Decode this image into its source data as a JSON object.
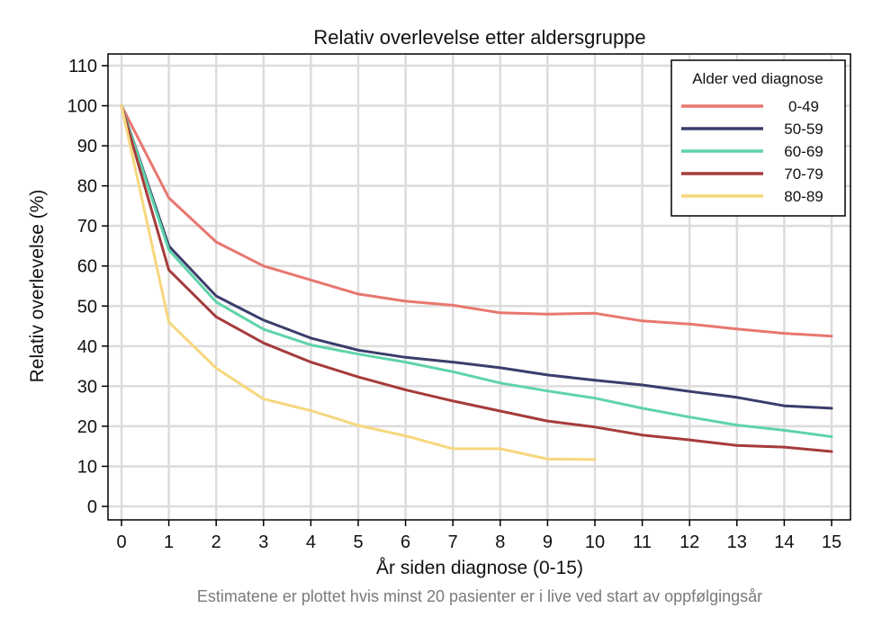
{
  "chart_data": {
    "type": "line",
    "title": "Relativ overlevelse etter aldersgruppe",
    "xlabel": "År siden diagnose (0-15)",
    "ylabel": "Relativ overlevelse (%)",
    "caption": "Estimatene er plottet hvis minst 20 pasienter er i live ved start av oppfølgingsår",
    "xlim": [
      0,
      15
    ],
    "ylim": [
      0,
      110
    ],
    "xticks": [
      0,
      1,
      2,
      3,
      4,
      5,
      6,
      7,
      8,
      9,
      10,
      11,
      12,
      13,
      14,
      15
    ],
    "yticks": [
      0,
      10,
      20,
      30,
      40,
      50,
      60,
      70,
      80,
      90,
      100,
      110
    ],
    "grid": true,
    "legend": {
      "title": "Alder ved diagnose",
      "position": "top-right"
    },
    "series": [
      {
        "name": "0-49",
        "color": "#e8776f",
        "x": [
          0,
          1,
          2,
          3,
          4,
          5,
          6,
          7,
          8,
          9,
          10,
          11,
          12,
          13,
          14,
          15
        ],
        "values": [
          100,
          77,
          66,
          60,
          56.5,
          53,
          51.2,
          50.2,
          48.3,
          48,
          48.2,
          46.3,
          45.5,
          44.3,
          43.2,
          42.5
        ]
      },
      {
        "name": "50-59",
        "color": "#3b3d6b",
        "x": [
          0,
          1,
          2,
          3,
          4,
          5,
          6,
          7,
          8,
          9,
          10,
          11,
          12,
          13,
          14,
          15
        ],
        "values": [
          100,
          65,
          52.5,
          46.5,
          42,
          39,
          37.2,
          36,
          34.6,
          32.8,
          31.5,
          30.3,
          28.7,
          27.2,
          25.1,
          24.5
        ]
      },
      {
        "name": "60-69",
        "color": "#5fd3ab",
        "x": [
          0,
          1,
          2,
          3,
          4,
          5,
          6,
          7,
          8,
          9,
          10,
          11,
          12,
          13,
          14,
          15
        ],
        "values": [
          100,
          64,
          51,
          44.2,
          40.3,
          38,
          36,
          33.6,
          30.8,
          28.8,
          27,
          24.5,
          22.3,
          20.3,
          19,
          17.4
        ]
      },
      {
        "name": "70-79",
        "color": "#a63b3b",
        "x": [
          0,
          1,
          2,
          3,
          4,
          5,
          6,
          7,
          8,
          9,
          10,
          11,
          12,
          13,
          14,
          15
        ],
        "values": [
          100,
          59,
          47.3,
          40.8,
          36,
          32.3,
          29.1,
          26.3,
          23.8,
          21.3,
          19.8,
          17.8,
          16.6,
          15.2,
          14.8,
          13.7
        ]
      },
      {
        "name": "80-89",
        "color": "#f6d77d",
        "x": [
          0,
          1,
          2,
          3,
          4,
          5,
          6,
          7,
          8,
          9,
          10
        ],
        "values": [
          100,
          46,
          34.5,
          26.8,
          23.9,
          20.2,
          17.6,
          14.4,
          14.4,
          11.8,
          11.7
        ]
      }
    ]
  }
}
